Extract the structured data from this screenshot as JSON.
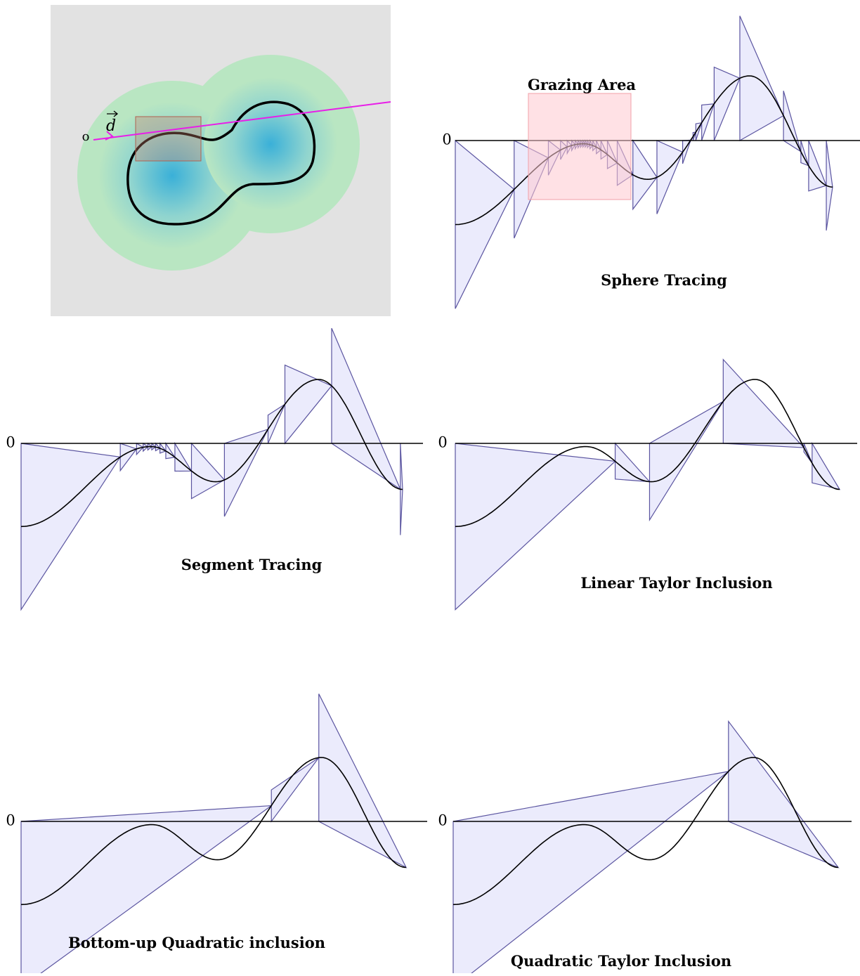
{
  "figure": {
    "inset": {
      "origin": "o",
      "direction": "d"
    },
    "grazing_label": "Grazing Area",
    "panels": [
      {
        "title": "Sphere Tracing",
        "zero": "0"
      },
      {
        "title": "Segment Tracing",
        "zero": "0"
      },
      {
        "title": "Linear Taylor Inclusion",
        "zero": "0"
      },
      {
        "title": "Bottom-up Quadratic inclusion",
        "zero": "0"
      },
      {
        "title": "Quadratic Taylor Inclusion",
        "zero": "0"
      }
    ]
  }
}
